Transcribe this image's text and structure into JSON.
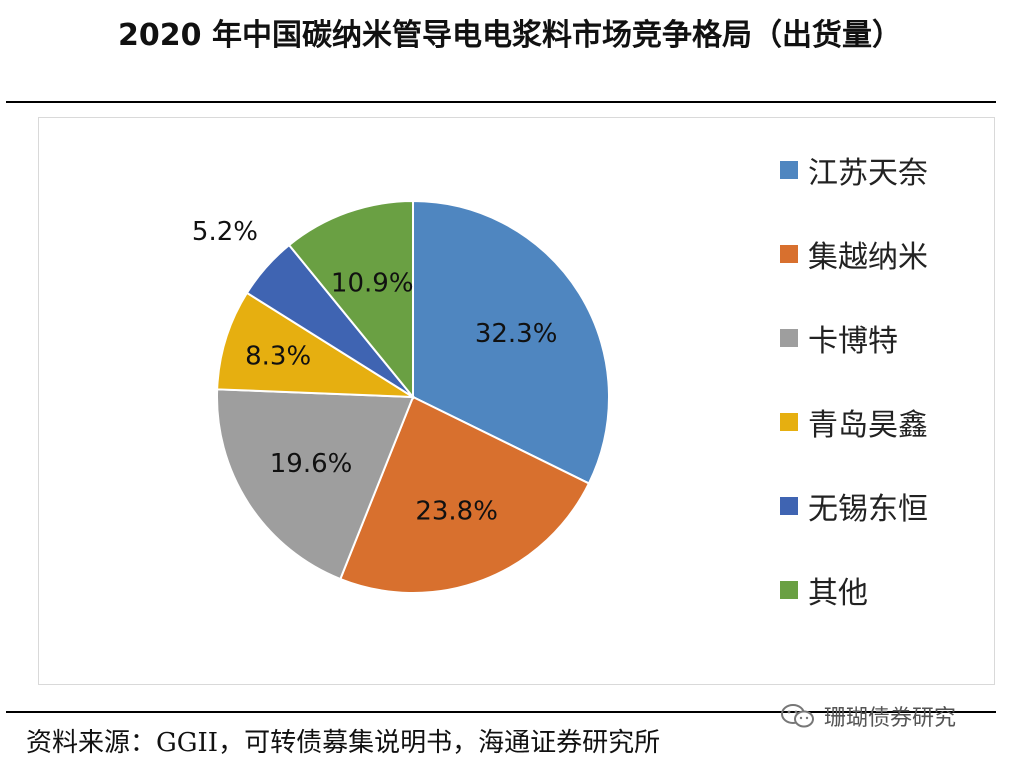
{
  "title": "2020 年中国碳纳米管导电电浆料市场竞争格局（出货量）",
  "chart_data": {
    "type": "pie",
    "title": "2020 年中国碳纳米管导电电浆料市场竞争格局（出货量）",
    "legend_position": "right",
    "labels": [
      "江苏天奈",
      "集越纳米",
      "卡博特",
      "青岛昊鑫",
      "无锡东恒",
      "其他"
    ],
    "values": [
      32.3,
      23.8,
      19.6,
      8.3,
      5.2,
      10.9
    ],
    "value_labels": [
      "32.3%",
      "23.8%",
      "19.6%",
      "8.3%",
      "5.2%",
      "10.9%"
    ],
    "colors": [
      "#4F86C0",
      "#D8702E",
      "#9E9E9E",
      "#E6AF10",
      "#3F64B2",
      "#6AA043"
    ]
  },
  "source": "资料来源：GGII，可转债募集说明书，海通证券研究所",
  "watermark": "珊瑚债券研究"
}
